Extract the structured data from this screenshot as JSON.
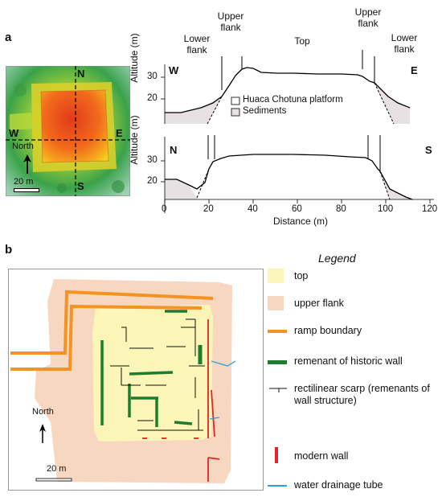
{
  "panel_a": {
    "letter": "a",
    "dem": {
      "compass": [
        "N",
        "W",
        "E",
        "S"
      ],
      "north_label": "North",
      "scale_label": "20 m"
    },
    "zone_labels": {
      "lower_left": "Lower flank",
      "upper_left": "Upper flank",
      "top": "Top",
      "upper_right": "Upper flank",
      "lower_right": "Lower flank"
    },
    "profile_we": {
      "left_dir": "W",
      "right_dir": "E",
      "ylabel": "Altitude (m)",
      "yticks": [
        "20",
        "30"
      ]
    },
    "profile_ns": {
      "left_dir": "N",
      "right_dir": "S",
      "ylabel": "Altitude (m)",
      "yticks": [
        "20",
        "30"
      ]
    },
    "legend": {
      "platform": "Huaca Chotuna platform",
      "sediments": "Sediments"
    },
    "xaxis": {
      "label": "Distance (m)",
      "ticks": [
        "0",
        "20",
        "40",
        "60",
        "80",
        "100",
        "120"
      ]
    }
  },
  "panel_b": {
    "letter": "b",
    "north_label": "North",
    "scale_label": "20 m",
    "legend": {
      "title": "Legend",
      "items": [
        {
          "label": "top",
          "color": "#fbf6b8"
        },
        {
          "label": "upper flank",
          "color": "#f8d7c1"
        },
        {
          "label": "ramp boundary",
          "color": "#f39322"
        },
        {
          "label": "remenant of historic wall",
          "color": "#1e7d2c"
        },
        {
          "label": "rectilinear scarp (remenants of wall structure)",
          "color": "#111111"
        },
        {
          "label": "modern wall",
          "color": "#e2232a"
        },
        {
          "label": "water drainage tube",
          "color": "#2aa0e0"
        }
      ]
    }
  },
  "colors": {
    "sediment": "#e7e1e3",
    "ramp": "#f39322",
    "historic_wall": "#1e7d2c",
    "modern_wall": "#e2232a",
    "drainage": "#2aa0e0",
    "top_fill": "#fbf6b8",
    "flank_fill": "#f8d7c1"
  }
}
